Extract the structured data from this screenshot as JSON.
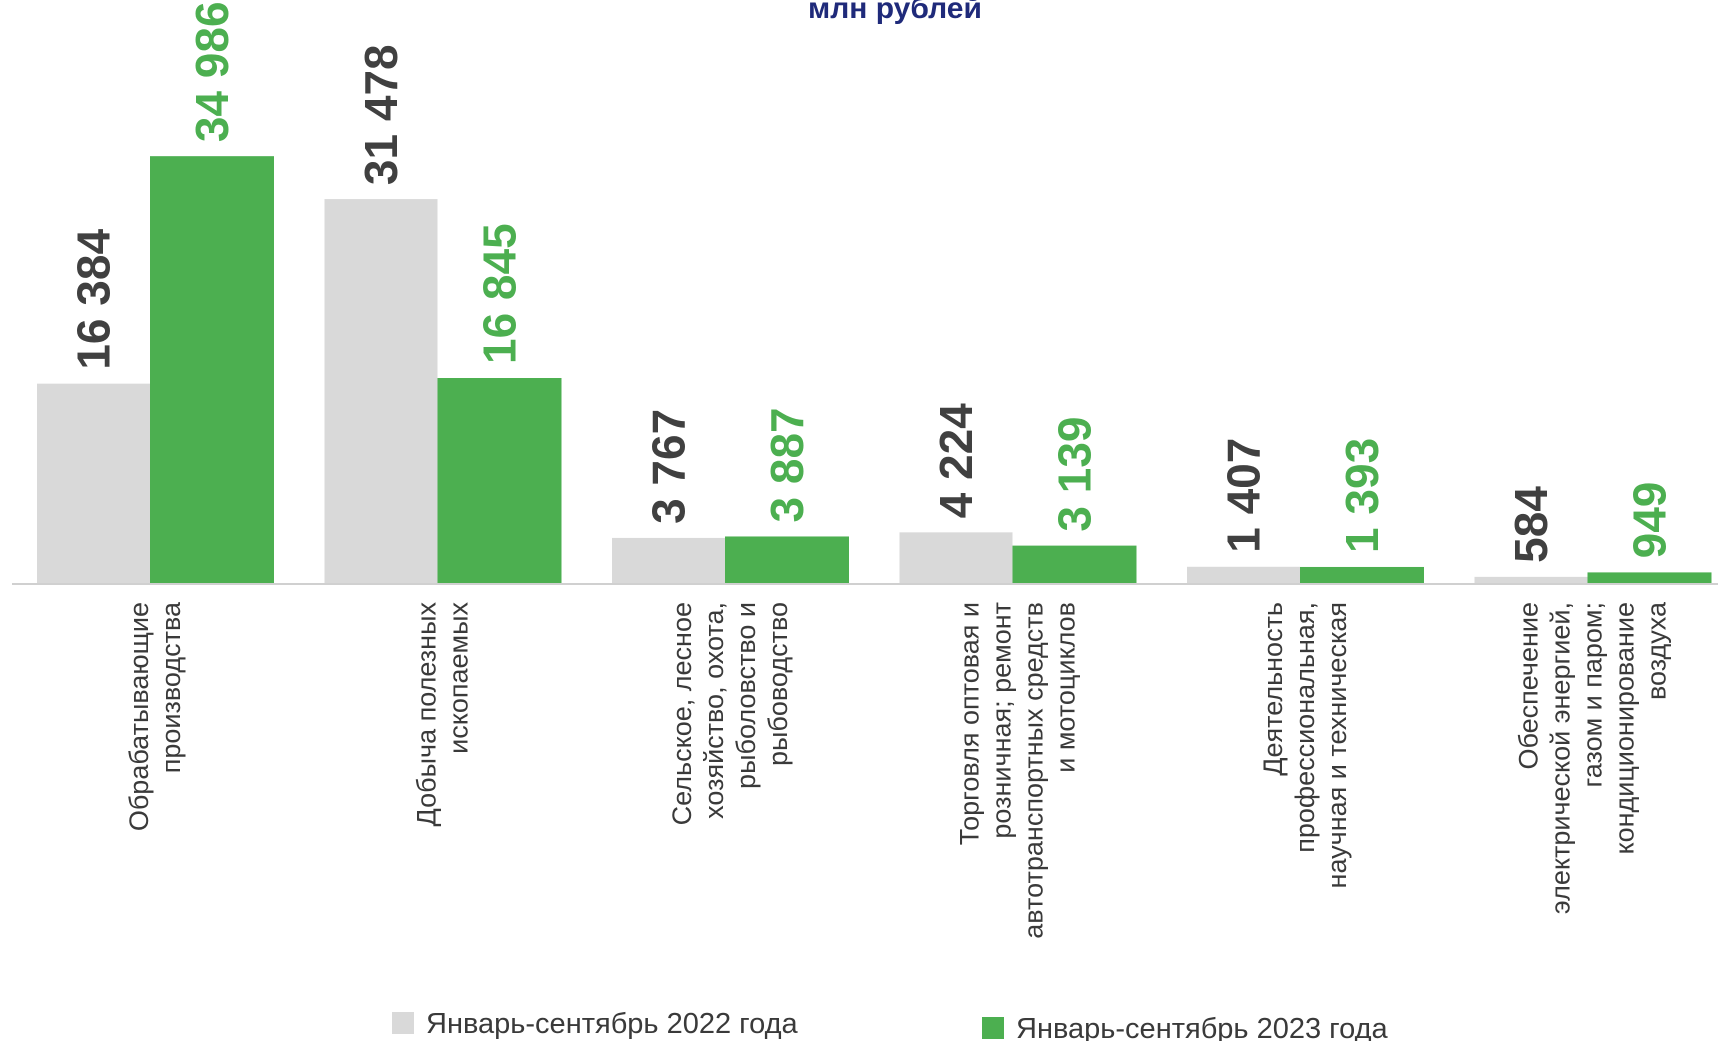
{
  "chart_data": {
    "type": "bar",
    "title": "млн рублей",
    "categories": [
      [
        "Обрабатывающие",
        "производства"
      ],
      [
        "Добыча полезных",
        "ископаемых"
      ],
      [
        "Сельское, лесное",
        "хозяйство, охота,",
        "рыболовство и",
        "рыбоводство"
      ],
      [
        "Торговля оптовая и",
        "розничная; ремонт",
        "автотранспортных средств",
        "и мотоциклов"
      ],
      [
        "Деятельность",
        "профессиональная,",
        "научная и техническая"
      ],
      [
        "Обеспечение",
        "электрической энергией,",
        "газом и паром;",
        "кондиционирование",
        "воздуха"
      ]
    ],
    "series": [
      {
        "name": "Январь-сентябрь 2022 года",
        "color": "#d9d9d9",
        "label_color": "#404040",
        "values": [
          16384,
          31478,
          3767,
          4224,
          1407,
          584
        ],
        "labels": [
          "16 384",
          "31 478",
          "3 767",
          "4 224",
          "1 407",
          "584"
        ]
      },
      {
        "name": "Январь-сентябрь 2023 года",
        "color": "#4caf50",
        "label_color": "#4caf50",
        "values": [
          34986,
          16845,
          3887,
          3139,
          1393,
          949
        ],
        "labels": [
          "34 986",
          "16 845",
          "3 887",
          "3 139",
          "1 393",
          "949"
        ]
      }
    ],
    "ylim": [
      0,
      35000
    ],
    "grid": false,
    "legend_position": "bottom"
  }
}
